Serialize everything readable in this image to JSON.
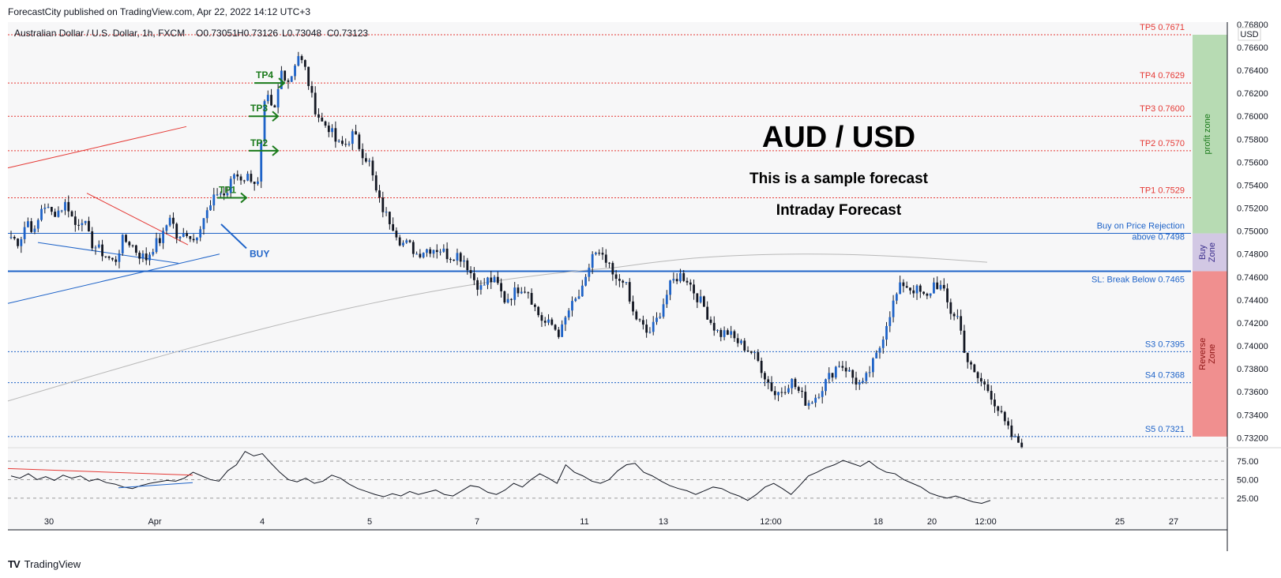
{
  "publisher": "ForecastCity published on TradingView.com, Apr 22, 2022 14:12 UTC+3",
  "footer": {
    "brand": "TradingView",
    "logo": "TV"
  },
  "colors": {
    "up": "#131722",
    "down": "#131722",
    "wick": "#131722",
    "tp": "#e53935",
    "support": "#1e63c8",
    "buy": "#1e63c8",
    "profit_zone": "#b7dbb3",
    "buy_zone": "#d2c8e4",
    "reverse_zone": "#f08f8f",
    "ma": "#b8b8b8",
    "green": "#1b7a1b"
  },
  "chart_data": [
    {
      "type": "candlestick",
      "symbol_line": {
        "pair": "Australian Dollar / U.S. Dollar, 1h, FXCM",
        "open": "O0.73051",
        "high": "H0.73126",
        "low": "L0.73048",
        "close": "C0.73123"
      },
      "currency": "USD",
      "title": "AUD / USD",
      "subtitle1": "This is a sample forecast",
      "subtitle2": "Intraday Forecast",
      "ylim": [
        0.7312,
        0.7682
      ],
      "y_ticks": [
        "0.73200",
        "0.73400",
        "0.73600",
        "0.73800",
        "0.74000",
        "0.74200",
        "0.74400",
        "0.74600",
        "0.74800",
        "0.75000",
        "0.75200",
        "0.75400",
        "0.75600",
        "0.75800",
        "0.76000",
        "0.76200",
        "0.76400",
        "0.76600",
        "0.76800"
      ],
      "x_ticks": [
        "30",
        "Apr",
        "4",
        "5",
        "7",
        "11",
        "13",
        "12:00",
        "18",
        "20",
        "12:00",
        "25",
        "27"
      ],
      "price_path": [
        [
          0.7495,
          0.749
        ],
        [
          0.751,
          0.7498
        ],
        [
          0.7525,
          0.7515
        ],
        [
          0.7518,
          0.7525
        ],
        [
          0.7505,
          0.7512
        ],
        [
          0.749,
          0.7484
        ],
        [
          0.7478,
          0.7472
        ],
        [
          0.7492,
          0.749
        ],
        [
          0.748,
          0.7476
        ],
        [
          0.7488,
          0.7494
        ],
        [
          0.7515,
          0.749
        ],
        [
          0.75,
          0.7492
        ],
        [
          0.751,
          0.752
        ],
        [
          0.7535,
          0.753
        ],
        [
          0.755,
          0.7546
        ],
        [
          0.7548,
          0.754
        ],
        [
          0.762,
          0.76
        ],
        [
          0.764,
          0.763
        ],
        [
          0.7655,
          0.764
        ],
        [
          0.761,
          0.7595
        ],
        [
          0.759,
          0.7575
        ],
        [
          0.7575,
          0.7585
        ],
        [
          0.757,
          0.756
        ],
        [
          0.753,
          0.7515
        ],
        [
          0.7505,
          0.749
        ],
        [
          0.7488,
          0.748
        ],
        [
          0.7484,
          0.7485
        ],
        [
          0.7484,
          0.7478
        ],
        [
          0.748,
          0.7475
        ],
        [
          0.746,
          0.745
        ],
        [
          0.7458,
          0.7455
        ],
        [
          0.744,
          0.7445
        ],
        [
          0.7452,
          0.7448
        ],
        [
          0.743,
          0.742
        ],
        [
          0.7418,
          0.741
        ],
        [
          0.743,
          0.744
        ],
        [
          0.745,
          0.748
        ],
        [
          0.7478,
          0.747
        ],
        [
          0.7455,
          0.746
        ],
        [
          0.743,
          0.742
        ],
        [
          0.741,
          0.742
        ],
        [
          0.7438,
          0.7455
        ],
        [
          0.7462,
          0.7458
        ],
        [
          0.7445,
          0.7435
        ],
        [
          0.742,
          0.741
        ],
        [
          0.7412,
          0.7405
        ],
        [
          0.74,
          0.7395
        ],
        [
          0.7385,
          0.737
        ],
        [
          0.7358,
          0.7362
        ],
        [
          0.737,
          0.736
        ],
        [
          0.735,
          0.7355
        ],
        [
          0.7365,
          0.7375
        ],
        [
          0.7385,
          0.738
        ],
        [
          0.737,
          0.7365
        ],
        [
          0.738,
          0.7395
        ],
        [
          0.742,
          0.744
        ],
        [
          0.7455,
          0.745
        ],
        [
          0.7448,
          0.744
        ],
        [
          0.7455,
          0.745
        ],
        [
          0.743,
          0.7425
        ],
        [
          0.739,
          0.7375
        ],
        [
          0.7368,
          0.736
        ],
        [
          0.7345,
          0.733
        ],
        [
          0.7318,
          0.7315
        ]
      ],
      "levels": [
        {
          "label": "TP5 0.7671",
          "value": 0.7671,
          "kind": "tp"
        },
        {
          "label": "TP4 0.7629",
          "value": 0.7629,
          "kind": "tp"
        },
        {
          "label": "TP3 0.7600",
          "value": 0.76,
          "kind": "tp"
        },
        {
          "label": "TP2 0.7570",
          "value": 0.757,
          "kind": "tp"
        },
        {
          "label": "TP1 0.7529",
          "value": 0.7529,
          "kind": "tp"
        },
        {
          "label": "Buy on Price Rejection",
          "label2": "above 0.7498",
          "value": 0.7498,
          "kind": "buy"
        },
        {
          "label": "SL: Break Below 0.7465",
          "value": 0.7465,
          "kind": "sl"
        },
        {
          "label": "S3 0.7395",
          "value": 0.7395,
          "kind": "s"
        },
        {
          "label": "S4 0.7368",
          "value": 0.7368,
          "kind": "s"
        },
        {
          "label": "S5 0.7321",
          "value": 0.7321,
          "kind": "s"
        }
      ],
      "zones": [
        {
          "label": "profit zone",
          "from": 0.7498,
          "to": 0.7671,
          "kind": "profit"
        },
        {
          "label": "Buy Zone",
          "from": 0.7465,
          "to": 0.7498,
          "kind": "buy"
        },
        {
          "label": "Reverse Zone",
          "from": 0.7321,
          "to": 0.7465,
          "kind": "reverse"
        }
      ],
      "annotations": {
        "tp_arrows": [
          {
            "label": "TP1",
            "value": 0.7529
          },
          {
            "label": "TP2",
            "value": 0.757
          },
          {
            "label": "TP3",
            "value": 0.76
          },
          {
            "label": "TP4",
            "value": 0.7629
          }
        ],
        "buy_label": "BUY"
      }
    },
    {
      "type": "line",
      "y_ticks": [
        "75.00",
        "50.00",
        "25.00"
      ],
      "ylim": [
        10,
        92
      ],
      "values": [
        55,
        52,
        58,
        50,
        54,
        49,
        56,
        52,
        55,
        48,
        51,
        46,
        44,
        40,
        38,
        42,
        45,
        47,
        49,
        48,
        52,
        60,
        55,
        50,
        48,
        62,
        70,
        88,
        82,
        85,
        72,
        60,
        50,
        47,
        52,
        45,
        48,
        56,
        52,
        44,
        38,
        34,
        30,
        27,
        31,
        28,
        34,
        30,
        33,
        36,
        30,
        28,
        35,
        42,
        40,
        33,
        30,
        36,
        45,
        40,
        50,
        58,
        52,
        45,
        70,
        60,
        55,
        48,
        45,
        50,
        62,
        70,
        72,
        60,
        55,
        48,
        42,
        38,
        35,
        30,
        35,
        40,
        38,
        32,
        28,
        22,
        30,
        40,
        45,
        38,
        30,
        42,
        55,
        60,
        66,
        70,
        76,
        72,
        68,
        75,
        66,
        60,
        58,
        50,
        45,
        40,
        32,
        28,
        25,
        28,
        24,
        20,
        18,
        22
      ]
    }
  ]
}
